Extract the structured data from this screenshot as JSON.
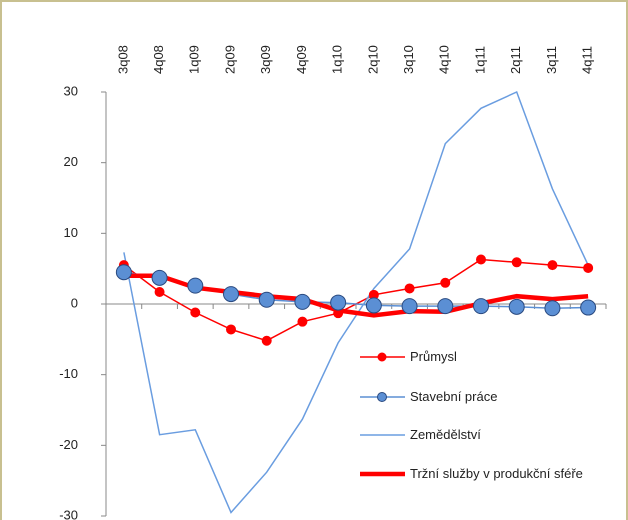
{
  "chart_data": {
    "type": "line",
    "categories": [
      "3q08",
      "4q08",
      "1q09",
      "2q09",
      "3q09",
      "4q09",
      "1q10",
      "2q10",
      "3q10",
      "4q10",
      "1q11",
      "2q11",
      "3q11",
      "4q11"
    ],
    "series": [
      {
        "name": "Průmysl",
        "color": "#ff0000",
        "marker": "circle",
        "values": [
          5.5,
          1.7,
          -1.2,
          -3.6,
          -5.2,
          -2.5,
          -1.3,
          1.3,
          2.2,
          3.0,
          6.3,
          5.9,
          5.5,
          5.1
        ]
      },
      {
        "name": "Stavební práce",
        "color": "#5b8fd4",
        "marker": "circle",
        "values": [
          4.5,
          3.7,
          2.6,
          1.4,
          0.6,
          0.3,
          0.2,
          -0.2,
          -0.3,
          -0.3,
          -0.3,
          -0.4,
          -0.6,
          -0.5
        ]
      },
      {
        "name": "Zemědělství",
        "color": "#6a9de0",
        "values": [
          7.3,
          -18.5,
          -17.8,
          -29.5,
          -23.8,
          -16.3,
          -5.5,
          2.2,
          7.8,
          22.7,
          27.7,
          30.0,
          16.3,
          5.5
        ]
      },
      {
        "name": "Tržní služby v produkční sféře",
        "color": "#ff0000",
        "values": [
          4.0,
          4.0,
          2.3,
          1.7,
          1.1,
          0.7,
          -0.9,
          -1.6,
          -1.0,
          -1.1,
          0.1,
          1.1,
          0.7,
          1.1
        ]
      }
    ],
    "ylim": [
      -30,
      30
    ],
    "yticks": [
      -30,
      -20,
      -10,
      0,
      10,
      20,
      30
    ],
    "grid": false,
    "legend": "lower right"
  }
}
